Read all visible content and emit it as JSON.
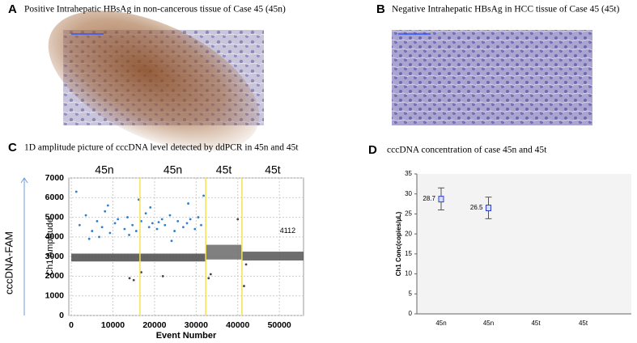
{
  "images": [
    {
      "panel": "A",
      "title": "Positive Intrahepatic HBsAg in non-cancerous tissue of Case 45 (45n)"
    },
    {
      "panel": "B",
      "title": "Negative Intrahepatic HBsAg in HCC tissue of Case 45 (45t)"
    }
  ],
  "chart_data": [
    {
      "type": "scatter",
      "panel": "C",
      "title": "1D amplitude picture of cccDNA level detected by ddPCR  in  45n and 45t",
      "xlabel": "Event Number",
      "ylabel": "Ch1 Amplitude",
      "outer_label": "cccDNA-FAM",
      "wells": [
        "45n",
        "45n",
        "45t",
        "45t"
      ],
      "dividers": [
        16500,
        32300,
        41000
      ],
      "divider_color": "#f2e25a",
      "annotation": {
        "text": "4112",
        "x": 52000,
        "y": 4300
      },
      "xlim": [
        -600,
        55800
      ],
      "ylim": [
        0,
        7000
      ],
      "xticks": [
        0,
        10000,
        20000,
        30000,
        40000,
        50000
      ],
      "yticks": [
        0,
        1000,
        2000,
        3000,
        4000,
        5000,
        6000,
        7000
      ],
      "grid": true,
      "bands": [
        {
          "color": "#4a4a4a",
          "x": [
            0,
            32300
          ],
          "y": [
            2750,
            3150
          ]
        },
        {
          "color": "#6a6a6a",
          "x": [
            32300,
            41000
          ],
          "y": [
            2850,
            3600
          ]
        },
        {
          "color": "#555555",
          "x": [
            41000,
            55800
          ],
          "y": [
            2800,
            3250
          ]
        }
      ],
      "series": [
        {
          "color": "#2a7fd4",
          "x": [
            2000,
            3500,
            5000,
            6200,
            7400,
            8100,
            9300,
            10500,
            11200,
            12800,
            13500,
            14700,
            15600,
            16800,
            17900,
            18700,
            19500,
            20600,
            21800,
            22500,
            23700,
            24800,
            25600,
            26900,
            27800,
            28600,
            29700,
            30500,
            31200,
            1200,
            4300,
            8800,
            13900,
            19000,
            24100,
            28100,
            31800,
            6700,
            16200,
            21000
          ],
          "values": [
            4600,
            5100,
            4300,
            4800,
            4500,
            5300,
            4200,
            4700,
            4900,
            4400,
            5000,
            4600,
            4300,
            4800,
            5200,
            4500,
            4700,
            4400,
            4900,
            4600,
            5100,
            4300,
            4800,
            4500,
            4700,
            4900,
            4400,
            5000,
            4600,
            6300,
            3900,
            5600,
            4100,
            5500,
            3800,
            5700,
            6100,
            4000,
            5900,
            4750
          ]
        },
        {
          "color": "#444444",
          "x": [
            14000,
            15000,
            16800,
            22000,
            33000,
            33500,
            40000,
            41500,
            42000
          ],
          "values": [
            1900,
            1800,
            2200,
            2000,
            1900,
            2100,
            4900,
            1500,
            2600
          ]
        }
      ]
    },
    {
      "type": "errorbar",
      "panel": "D",
      "title": "cccDNA concentration of case 45n and 45t",
      "ylabel": "Ch1 Conc(copies/µL)",
      "categories": [
        "45n",
        "45n",
        "45t",
        "45t"
      ],
      "values": [
        28.7,
        26.5,
        null,
        null
      ],
      "value_labels": [
        "28.7",
        "26.5",
        null,
        null
      ],
      "error_low": [
        2.7,
        2.7,
        null,
        null
      ],
      "error_high": [
        2.8,
        2.7,
        null,
        null
      ],
      "color": "#2b3fd0",
      "ylim": [
        0,
        35
      ],
      "yticks": [
        0,
        5,
        10,
        15,
        20,
        25,
        30,
        35
      ]
    }
  ]
}
